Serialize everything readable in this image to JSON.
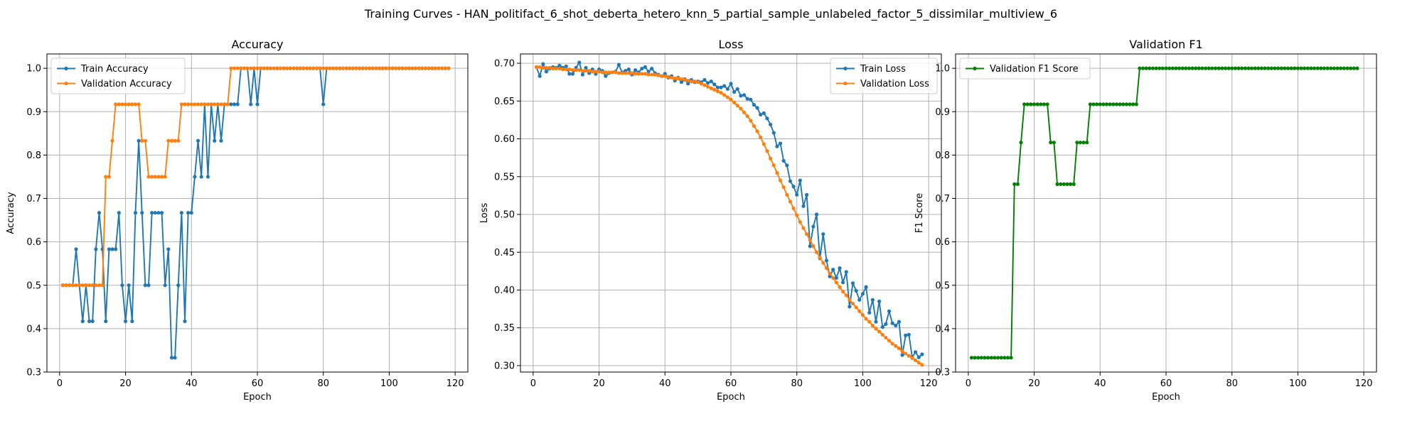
{
  "figure": {
    "suptitle": "Training Curves - HAN_politifact_6_shot_deberta_hetero_knn_5_partial_sample_unlabeled_factor_5_dissimilar_multiview_6"
  },
  "colors": {
    "blue": "#1f77b4",
    "orange": "#ff7f0e",
    "green": "#008000"
  },
  "chart_data": [
    {
      "type": "line",
      "title": "Accuracy",
      "xlabel": "Epoch",
      "ylabel": "Accuracy",
      "xlim": [
        -3.85,
        123.85
      ],
      "ylim": [
        0.3,
        1.033
      ],
      "xticks": [
        0,
        20,
        40,
        60,
        80,
        100,
        120
      ],
      "yticks": [
        0.3,
        0.4,
        0.5,
        0.6,
        0.7,
        0.8,
        0.9,
        1.0
      ],
      "grid": true,
      "legend": "upper left",
      "series": [
        {
          "name": "Train Accuracy",
          "color": "#1f77b4",
          "x_start": 1,
          "values": [
            0.5,
            0.5,
            0.5,
            0.5,
            0.583,
            0.5,
            0.417,
            0.5,
            0.417,
            0.417,
            0.583,
            0.667,
            0.583,
            0.417,
            0.583,
            0.583,
            0.583,
            0.667,
            0.5,
            0.417,
            0.5,
            0.417,
            0.667,
            0.833,
            0.667,
            0.5,
            0.5,
            0.667,
            0.667,
            0.667,
            0.667,
            0.5,
            0.583,
            0.333,
            0.333,
            0.5,
            0.667,
            0.417,
            0.667,
            0.667,
            0.75,
            0.833,
            0.75,
            0.917,
            0.75,
            0.917,
            0.833,
            0.917,
            0.833,
            0.917,
            0.917,
            0.917,
            0.917,
            0.917,
            1.0,
            1.0,
            1.0,
            0.917,
            1.0,
            0.917,
            1.0,
            1.0,
            1.0,
            1.0,
            1.0,
            1.0,
            1.0,
            1.0,
            1.0,
            1.0,
            1.0,
            1.0,
            1.0,
            1.0,
            1.0,
            1.0,
            1.0,
            1.0,
            1.0,
            0.917,
            1.0,
            1.0,
            1.0,
            1.0,
            1.0,
            1.0,
            1.0,
            1.0,
            1.0,
            1.0,
            1.0,
            1.0,
            1.0,
            1.0,
            1.0,
            1.0,
            1.0,
            1.0,
            1.0,
            1.0,
            1.0,
            1.0,
            1.0,
            1.0,
            1.0,
            1.0,
            1.0,
            1.0,
            1.0,
            1.0,
            1.0,
            1.0,
            1.0,
            1.0,
            1.0,
            1.0,
            1.0,
            1.0
          ]
        },
        {
          "name": "Validation Accuracy",
          "color": "#ff7f0e",
          "x_start": 1,
          "values": [
            0.5,
            0.5,
            0.5,
            0.5,
            0.5,
            0.5,
            0.5,
            0.5,
            0.5,
            0.5,
            0.5,
            0.5,
            0.5,
            0.75,
            0.75,
            0.833,
            0.917,
            0.917,
            0.917,
            0.917,
            0.917,
            0.917,
            0.917,
            0.917,
            0.833,
            0.833,
            0.75,
            0.75,
            0.75,
            0.75,
            0.75,
            0.75,
            0.833,
            0.833,
            0.833,
            0.833,
            0.917,
            0.917,
            0.917,
            0.917,
            0.917,
            0.917,
            0.917,
            0.917,
            0.917,
            0.917,
            0.917,
            0.917,
            0.917,
            0.917,
            0.917,
            1.0,
            1.0,
            1.0,
            1.0,
            1.0,
            1.0,
            1.0,
            1.0,
            1.0,
            1.0,
            1.0,
            1.0,
            1.0,
            1.0,
            1.0,
            1.0,
            1.0,
            1.0,
            1.0,
            1.0,
            1.0,
            1.0,
            1.0,
            1.0,
            1.0,
            1.0,
            1.0,
            1.0,
            1.0,
            1.0,
            1.0,
            1.0,
            1.0,
            1.0,
            1.0,
            1.0,
            1.0,
            1.0,
            1.0,
            1.0,
            1.0,
            1.0,
            1.0,
            1.0,
            1.0,
            1.0,
            1.0,
            1.0,
            1.0,
            1.0,
            1.0,
            1.0,
            1.0,
            1.0,
            1.0,
            1.0,
            1.0,
            1.0,
            1.0,
            1.0,
            1.0,
            1.0,
            1.0,
            1.0,
            1.0,
            1.0,
            1.0
          ]
        }
      ]
    },
    {
      "type": "line",
      "title": "Loss",
      "xlabel": "Epoch",
      "ylabel": "Loss",
      "xlim": [
        -3.85,
        123.85
      ],
      "ylim": [
        0.2915,
        0.7123
      ],
      "xticks": [
        0,
        20,
        40,
        60,
        80,
        100,
        120
      ],
      "yticks": [
        0.3,
        0.35,
        0.4,
        0.45,
        0.5,
        0.55,
        0.6,
        0.65,
        0.7
      ],
      "grid": true,
      "legend": "upper right",
      "series": [
        {
          "name": "Train Loss",
          "color": "#1f77b4",
          "x_start": 1,
          "values": [
            0.695,
            0.683,
            0.699,
            0.689,
            0.693,
            0.695,
            0.694,
            0.697,
            0.694,
            0.696,
            0.686,
            0.686,
            0.694,
            0.701,
            0.685,
            0.694,
            0.687,
            0.692,
            0.686,
            0.692,
            0.69,
            0.683,
            0.687,
            0.688,
            0.689,
            0.698,
            0.688,
            0.69,
            0.692,
            0.685,
            0.691,
            0.688,
            0.693,
            0.695,
            0.689,
            0.693,
            0.687,
            0.685,
            0.683,
            0.686,
            0.681,
            0.683,
            0.677,
            0.681,
            0.675,
            0.679,
            0.673,
            0.678,
            0.675,
            0.676,
            0.675,
            0.678,
            0.674,
            0.676,
            0.672,
            0.668,
            0.668,
            0.67,
            0.666,
            0.673,
            0.662,
            0.666,
            0.657,
            0.658,
            0.653,
            0.652,
            0.645,
            0.641,
            0.632,
            0.634,
            0.627,
            0.619,
            0.608,
            0.59,
            0.594,
            0.571,
            0.565,
            0.544,
            0.537,
            0.526,
            0.545,
            0.511,
            0.526,
            0.458,
            0.484,
            0.5,
            0.442,
            0.474,
            0.439,
            0.418,
            0.427,
            0.416,
            0.429,
            0.41,
            0.424,
            0.378,
            0.409,
            0.399,
            0.387,
            0.395,
            0.404,
            0.37,
            0.387,
            0.358,
            0.385,
            0.351,
            0.355,
            0.372,
            0.356,
            0.353,
            0.358,
            0.314,
            0.34,
            0.341,
            0.311,
            0.318,
            0.311,
            0.315
          ]
        },
        {
          "name": "Validation Loss",
          "color": "#ff7f0e",
          "x_start": 1,
          "values": [
            0.695,
            0.695,
            0.694,
            0.694,
            0.694,
            0.693,
            0.693,
            0.693,
            0.692,
            0.692,
            0.692,
            0.691,
            0.691,
            0.691,
            0.69,
            0.69,
            0.69,
            0.689,
            0.689,
            0.689,
            0.688,
            0.688,
            0.688,
            0.688,
            0.688,
            0.687,
            0.687,
            0.687,
            0.687,
            0.687,
            0.686,
            0.686,
            0.686,
            0.686,
            0.685,
            0.685,
            0.685,
            0.684,
            0.683,
            0.683,
            0.682,
            0.681,
            0.68,
            0.68,
            0.679,
            0.678,
            0.677,
            0.676,
            0.676,
            0.675,
            0.673,
            0.671,
            0.669,
            0.667,
            0.665,
            0.663,
            0.661,
            0.658,
            0.655,
            0.652,
            0.648,
            0.644,
            0.64,
            0.635,
            0.63,
            0.624,
            0.617,
            0.61,
            0.602,
            0.593,
            0.584,
            0.574,
            0.565,
            0.555,
            0.545,
            0.536,
            0.526,
            0.517,
            0.508,
            0.499,
            0.49,
            0.482,
            0.474,
            0.466,
            0.458,
            0.45,
            0.443,
            0.436,
            0.429,
            0.422,
            0.416,
            0.41,
            0.404,
            0.398,
            0.393,
            0.387,
            0.382,
            0.377,
            0.372,
            0.367,
            0.362,
            0.358,
            0.353,
            0.349,
            0.345,
            0.341,
            0.337,
            0.333,
            0.329,
            0.326,
            0.323,
            0.319,
            0.316,
            0.313,
            0.31,
            0.307,
            0.304,
            0.301
          ]
        }
      ]
    },
    {
      "type": "line",
      "title": "Validation F1",
      "xlabel": "Epoch",
      "ylabel": "F1 Score",
      "xlim": [
        -3.85,
        123.85
      ],
      "ylim": [
        0.3,
        1.033
      ],
      "xticks": [
        0,
        20,
        40,
        60,
        80,
        100,
        120
      ],
      "yticks": [
        0.3,
        0.4,
        0.5,
        0.6,
        0.7,
        0.8,
        0.9,
        1.0
      ],
      "grid": true,
      "legend": "upper left",
      "series": [
        {
          "name": "Validation F1 Score",
          "color": "#008000",
          "x_start": 1,
          "values": [
            0.333,
            0.333,
            0.333,
            0.333,
            0.333,
            0.333,
            0.333,
            0.333,
            0.333,
            0.333,
            0.333,
            0.333,
            0.333,
            0.733,
            0.733,
            0.829,
            0.917,
            0.917,
            0.917,
            0.917,
            0.917,
            0.917,
            0.917,
            0.917,
            0.829,
            0.829,
            0.733,
            0.733,
            0.733,
            0.733,
            0.733,
            0.733,
            0.829,
            0.829,
            0.829,
            0.829,
            0.917,
            0.917,
            0.917,
            0.917,
            0.917,
            0.917,
            0.917,
            0.917,
            0.917,
            0.917,
            0.917,
            0.917,
            0.917,
            0.917,
            0.917,
            1.0,
            1.0,
            1.0,
            1.0,
            1.0,
            1.0,
            1.0,
            1.0,
            1.0,
            1.0,
            1.0,
            1.0,
            1.0,
            1.0,
            1.0,
            1.0,
            1.0,
            1.0,
            1.0,
            1.0,
            1.0,
            1.0,
            1.0,
            1.0,
            1.0,
            1.0,
            1.0,
            1.0,
            1.0,
            1.0,
            1.0,
            1.0,
            1.0,
            1.0,
            1.0,
            1.0,
            1.0,
            1.0,
            1.0,
            1.0,
            1.0,
            1.0,
            1.0,
            1.0,
            1.0,
            1.0,
            1.0,
            1.0,
            1.0,
            1.0,
            1.0,
            1.0,
            1.0,
            1.0,
            1.0,
            1.0,
            1.0,
            1.0,
            1.0,
            1.0,
            1.0,
            1.0,
            1.0,
            1.0,
            1.0,
            1.0,
            1.0
          ]
        }
      ]
    }
  ]
}
